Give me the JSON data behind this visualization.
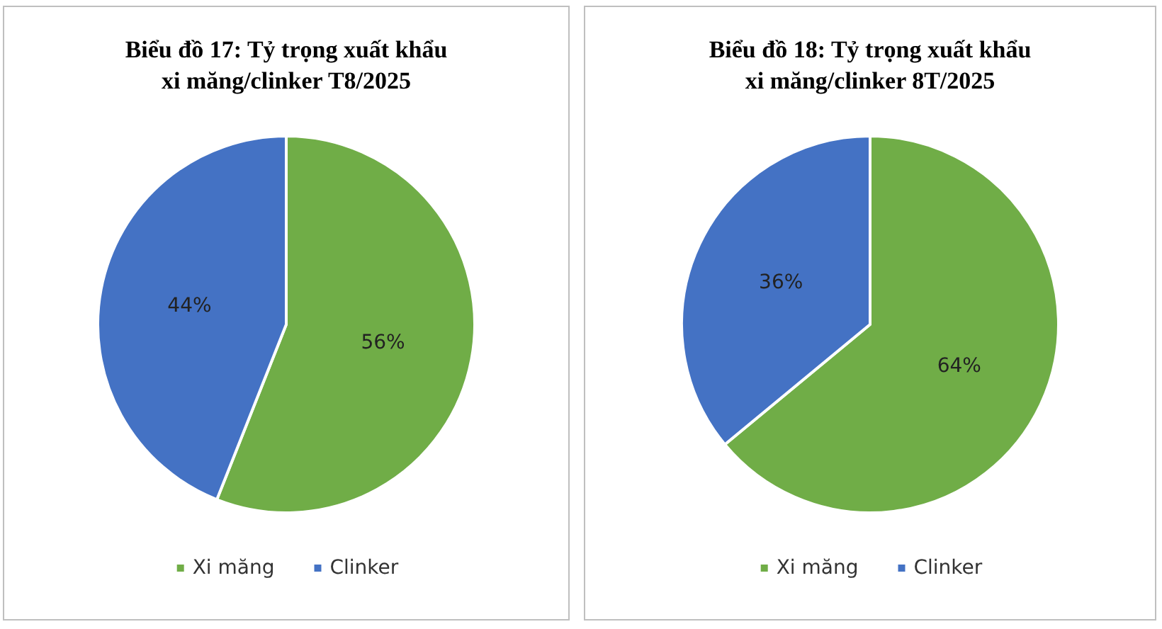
{
  "chart_data": [
    {
      "type": "pie",
      "title": "Biểu đồ 17: Tỷ trọng xuất khẩu\nxi măng/clinker T8/2025",
      "categories": [
        "Xi măng",
        "Clinker"
      ],
      "values": [
        56,
        44
      ],
      "colors": [
        "#70ad47",
        "#4472c4"
      ],
      "value_labels": [
        "56%",
        "44%"
      ],
      "legend": "bottom"
    },
    {
      "type": "pie",
      "title": "Biểu đồ 18: Tỷ trọng xuất khẩu\nxi măng/clinker 8T/2025",
      "categories": [
        "Xi măng",
        "Clinker"
      ],
      "values": [
        64,
        36
      ],
      "colors": [
        "#70ad47",
        "#4472c4"
      ],
      "value_labels": [
        "64%",
        "36%"
      ],
      "legend": "bottom"
    }
  ]
}
